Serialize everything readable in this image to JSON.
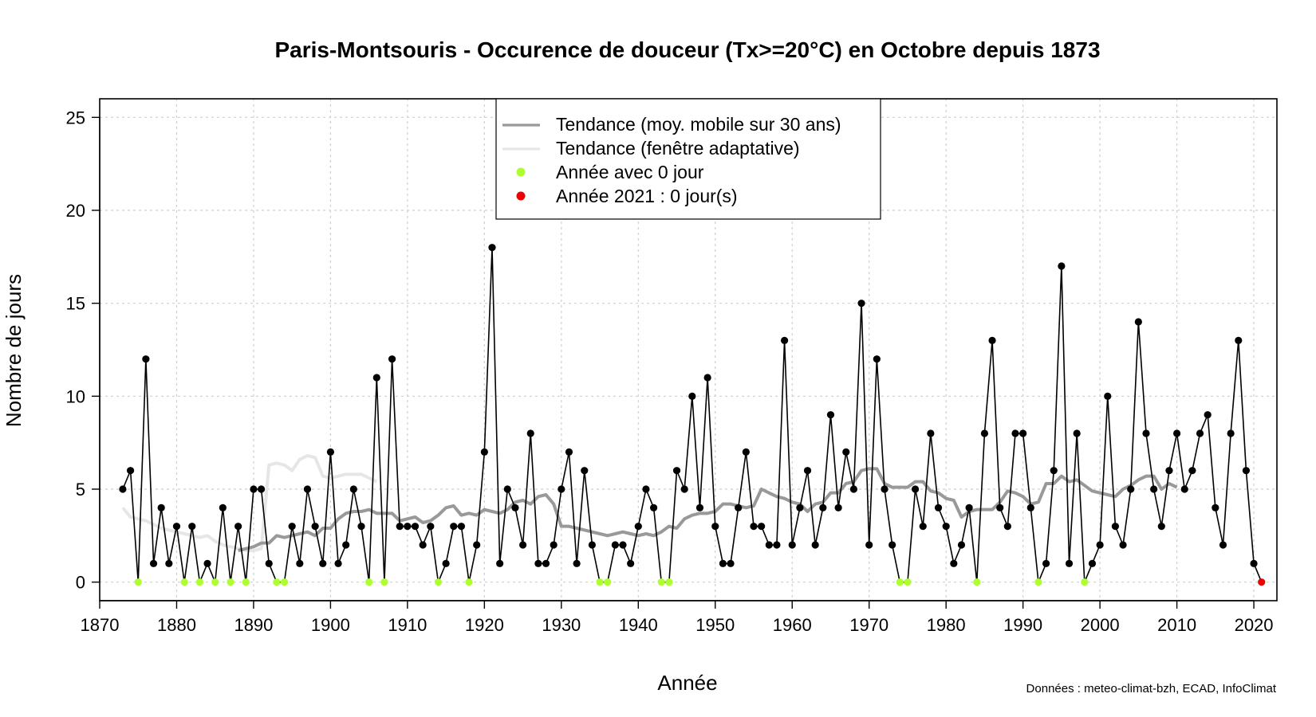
{
  "chart_data": {
    "type": "line",
    "title": "Paris-Montsouris - Occurence de douceur (Tx>=20°C) en Octobre depuis 1873",
    "xlabel": "Année",
    "ylabel": "Nombre de jours",
    "source": "Données : meteo-climat-bzh, ECAD, InfoClimat",
    "xlim": [
      1870,
      2023
    ],
    "ylim": [
      -1,
      26
    ],
    "x_ticks": [
      1870,
      1880,
      1890,
      1900,
      1910,
      1920,
      1930,
      1940,
      1950,
      1960,
      1970,
      1980,
      1990,
      2000,
      2010,
      2020
    ],
    "y_ticks": [
      0,
      5,
      10,
      15,
      20,
      25
    ],
    "grid": true,
    "colors": {
      "observations": "#000000",
      "moving_average": "#999999",
      "adaptive_trend": "#e6e6e6",
      "zero_year": "#adff2f",
      "current_year": "#ee0000"
    },
    "legend": {
      "position": "top-center",
      "entries": [
        "Tendance (moy. mobile sur 30 ans)",
        "Tendance (fenêtre adaptative)",
        "Année avec 0 jour",
        "Année 2021 : 0 jour(s)"
      ]
    },
    "start_year": 1873,
    "current_year": 2021,
    "values": [
      5,
      6,
      0,
      12,
      1,
      4,
      1,
      3,
      0,
      3,
      0,
      1,
      0,
      4,
      0,
      3,
      0,
      5,
      5,
      1,
      0,
      0,
      3,
      1,
      5,
      3,
      1,
      7,
      1,
      2,
      5,
      3,
      0,
      11,
      0,
      12,
      3,
      3,
      3,
      2,
      3,
      0,
      1,
      3,
      3,
      0,
      2,
      7,
      18,
      1,
      5,
      4,
      2,
      8,
      1,
      1,
      2,
      5,
      7,
      1,
      6,
      2,
      0,
      0,
      2,
      2,
      1,
      3,
      5,
      4,
      0,
      0,
      6,
      5,
      10,
      4,
      11,
      3,
      1,
      1,
      4,
      7,
      3,
      3,
      2,
      2,
      13,
      2,
      4,
      6,
      2,
      4,
      9,
      4,
      7,
      5,
      15,
      2,
      12,
      5,
      2,
      0,
      0,
      5,
      3,
      8,
      4,
      3,
      1,
      2,
      4,
      0,
      8,
      13,
      4,
      3,
      8,
      8,
      4,
      0,
      1,
      6,
      17,
      1,
      8,
      0,
      1,
      2,
      10,
      3,
      2,
      5,
      14,
      8,
      5,
      3,
      6,
      8,
      5,
      6,
      8,
      9,
      4,
      2,
      8,
      13,
      6,
      1,
      0
    ],
    "moving_average": {
      "x_start": 1888,
      "values": [
        1.7,
        1.8,
        1.9,
        2.1,
        2.1,
        2.5,
        2.4,
        2.5,
        2.6,
        2.7,
        2.5,
        2.9,
        2.9,
        3.4,
        3.7,
        3.8,
        3.8,
        3.9,
        3.7,
        3.7,
        3.7,
        3.3,
        3.4,
        3.5,
        3.2,
        3.3,
        3.6,
        4.0,
        4.1,
        3.6,
        3.7,
        3.6,
        3.9,
        3.8,
        3.7,
        3.9,
        4.3,
        4.4,
        4.2,
        4.6,
        4.7,
        4.2,
        3.0,
        3.0,
        2.9,
        2.8,
        2.7,
        2.6,
        2.5,
        2.6,
        2.7,
        2.6,
        2.5,
        2.6,
        2.5,
        2.7,
        3.0,
        2.9,
        3.4,
        3.6,
        3.7,
        3.7,
        3.8,
        4.2,
        4.2,
        4.1,
        4.0,
        4.1,
        5.0,
        4.8,
        4.6,
        4.5,
        4.3,
        4.2,
        3.8,
        4.2,
        4.3,
        4.8,
        4.8,
        5.3,
        5.4,
        6.0,
        6.1,
        6.1,
        5.3,
        5.1,
        5.1,
        5.1,
        5.4,
        5.4,
        4.9,
        4.8,
        4.5,
        4.4,
        3.5,
        3.8,
        3.9,
        3.9,
        3.9,
        4.3,
        4.9,
        4.8,
        4.6,
        4.2,
        4.3,
        5.3,
        5.3,
        5.7,
        5.4,
        5.5,
        5.2,
        4.9,
        4.8,
        4.7,
        4.6,
        5.0,
        5.2,
        5.5,
        5.7,
        5.7,
        5.0,
        5.3,
        5.1
      ]
    },
    "adaptive_trend": {
      "x_start": 1873,
      "values": [
        4.0,
        3.5,
        3.4,
        3.3,
        3.1,
        2.9,
        2.8,
        2.7,
        2.6,
        2.5,
        2.4,
        2.5,
        2.2,
        2.0,
        1.9,
        1.8,
        1.7,
        1.7,
        1.8,
        6.3,
        6.4,
        6.3,
        6.0,
        6.6,
        6.8,
        6.7,
        5.7,
        5.6,
        5.7,
        5.8,
        5.8,
        5.8,
        5.6,
        5.4
      ]
    }
  }
}
